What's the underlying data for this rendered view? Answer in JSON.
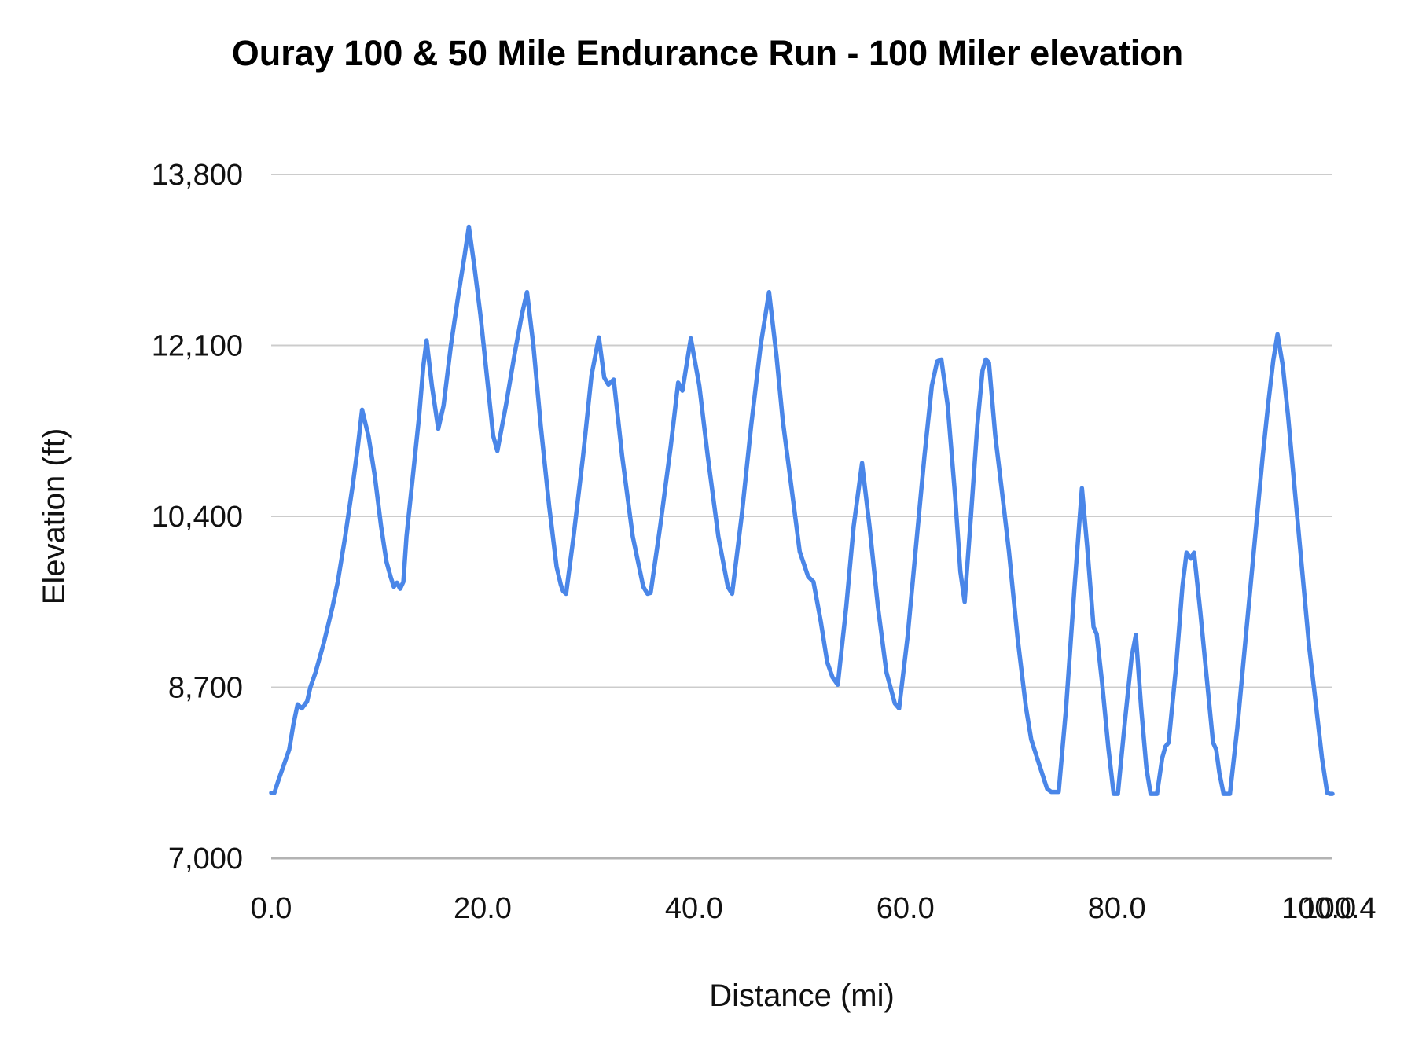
{
  "title": "Ouray 100 & 50 Mile Endurance Run - 100 Miler elevation",
  "colors": {
    "line": "#4a86e8",
    "gridline": "#cccccc",
    "baseline": "#b3b3b3",
    "text": "#111111",
    "background": "#ffffff"
  },
  "chart_data": {
    "type": "line",
    "title": "Ouray 100 & 50 Mile Endurance Run - 100 Miler elevation",
    "xlabel": "Distance (mi)",
    "ylabel": "Elevation (ft)",
    "xlim": [
      0,
      100.4
    ],
    "ylim": [
      7000,
      13800
    ],
    "grid": "horizontal-only",
    "legend": "none",
    "x_ticks": [
      {
        "value": 0.0,
        "label": "0.0"
      },
      {
        "value": 20.0,
        "label": "20.0"
      },
      {
        "value": 40.0,
        "label": "40.0"
      },
      {
        "value": 60.0,
        "label": "60.0"
      },
      {
        "value": 80.0,
        "label": "80.0"
      },
      {
        "value": 100.0,
        "label": "100.0"
      },
      {
        "value": 100.4,
        "label": "100.4"
      }
    ],
    "y_ticks": [
      {
        "value": 7000,
        "label": "7,000"
      },
      {
        "value": 8700,
        "label": "8,700"
      },
      {
        "value": 10400,
        "label": "10,400"
      },
      {
        "value": 12100,
        "label": "12,100"
      },
      {
        "value": 13800,
        "label": "13,800"
      }
    ],
    "series": [
      {
        "name": "100 Miler elevation",
        "points": [
          [
            0.0,
            7650
          ],
          [
            0.3,
            7650
          ],
          [
            0.7,
            7780
          ],
          [
            1.1,
            7900
          ],
          [
            1.7,
            8080
          ],
          [
            2.1,
            8330
          ],
          [
            2.5,
            8530
          ],
          [
            2.9,
            8490
          ],
          [
            3.4,
            8560
          ],
          [
            3.7,
            8700
          ],
          [
            4.2,
            8850
          ],
          [
            5.0,
            9150
          ],
          [
            5.8,
            9500
          ],
          [
            6.3,
            9750
          ],
          [
            7.0,
            10200
          ],
          [
            7.7,
            10700
          ],
          [
            8.2,
            11100
          ],
          [
            8.6,
            11460
          ],
          [
            9.2,
            11200
          ],
          [
            9.8,
            10800
          ],
          [
            10.4,
            10300
          ],
          [
            10.9,
            9950
          ],
          [
            11.3,
            9800
          ],
          [
            11.6,
            9700
          ],
          [
            11.9,
            9740
          ],
          [
            12.2,
            9680
          ],
          [
            12.5,
            9750
          ],
          [
            12.8,
            10200
          ],
          [
            13.4,
            10800
          ],
          [
            14.0,
            11400
          ],
          [
            14.4,
            11900
          ],
          [
            14.7,
            12150
          ],
          [
            15.2,
            11700
          ],
          [
            15.8,
            11270
          ],
          [
            16.3,
            11500
          ],
          [
            17.0,
            12100
          ],
          [
            17.7,
            12600
          ],
          [
            18.3,
            13000
          ],
          [
            18.7,
            13280
          ],
          [
            19.2,
            12900
          ],
          [
            19.8,
            12400
          ],
          [
            20.4,
            11800
          ],
          [
            21.0,
            11200
          ],
          [
            21.4,
            11050
          ],
          [
            22.2,
            11500
          ],
          [
            23.0,
            12000
          ],
          [
            23.7,
            12400
          ],
          [
            24.2,
            12630
          ],
          [
            24.8,
            12100
          ],
          [
            25.5,
            11300
          ],
          [
            26.3,
            10500
          ],
          [
            27.0,
            9900
          ],
          [
            27.4,
            9720
          ],
          [
            27.6,
            9660
          ],
          [
            27.9,
            9630
          ],
          [
            28.6,
            10200
          ],
          [
            29.5,
            11000
          ],
          [
            30.3,
            11800
          ],
          [
            31.0,
            12180
          ],
          [
            31.5,
            11780
          ],
          [
            31.9,
            11710
          ],
          [
            32.4,
            11760
          ],
          [
            33.2,
            11000
          ],
          [
            34.2,
            10200
          ],
          [
            35.2,
            9700
          ],
          [
            35.6,
            9630
          ],
          [
            35.9,
            9640
          ],
          [
            36.8,
            10300
          ],
          [
            37.8,
            11100
          ],
          [
            38.5,
            11730
          ],
          [
            38.9,
            11650
          ],
          [
            39.7,
            12170
          ],
          [
            40.5,
            11700
          ],
          [
            41.3,
            11000
          ],
          [
            42.3,
            10200
          ],
          [
            43.2,
            9700
          ],
          [
            43.6,
            9630
          ],
          [
            44.5,
            10400
          ],
          [
            45.4,
            11300
          ],
          [
            46.3,
            12100
          ],
          [
            47.1,
            12630
          ],
          [
            47.8,
            12000
          ],
          [
            48.4,
            11350
          ],
          [
            49.2,
            10700
          ],
          [
            50.0,
            10050
          ],
          [
            50.8,
            9800
          ],
          [
            51.3,
            9750
          ],
          [
            52.0,
            9350
          ],
          [
            52.6,
            8950
          ],
          [
            53.1,
            8800
          ],
          [
            53.6,
            8725
          ],
          [
            54.4,
            9500
          ],
          [
            55.1,
            10300
          ],
          [
            55.9,
            10930
          ],
          [
            56.6,
            10300
          ],
          [
            57.4,
            9500
          ],
          [
            58.2,
            8850
          ],
          [
            59.0,
            8540
          ],
          [
            59.4,
            8490
          ],
          [
            60.2,
            9200
          ],
          [
            61.0,
            10100
          ],
          [
            61.8,
            11000
          ],
          [
            62.5,
            11700
          ],
          [
            63.0,
            11940
          ],
          [
            63.4,
            11960
          ],
          [
            64.0,
            11500
          ],
          [
            64.7,
            10600
          ],
          [
            65.2,
            9850
          ],
          [
            65.6,
            9550
          ],
          [
            66.2,
            10400
          ],
          [
            66.8,
            11300
          ],
          [
            67.3,
            11850
          ],
          [
            67.6,
            11960
          ],
          [
            67.9,
            11930
          ],
          [
            68.5,
            11200
          ],
          [
            69.1,
            10680
          ],
          [
            69.8,
            10050
          ],
          [
            70.6,
            9200
          ],
          [
            71.4,
            8500
          ],
          [
            71.9,
            8180
          ],
          [
            72.6,
            7950
          ],
          [
            73.4,
            7690
          ],
          [
            73.8,
            7660
          ],
          [
            74.5,
            7660
          ],
          [
            75.2,
            8500
          ],
          [
            76.0,
            9700
          ],
          [
            76.7,
            10680
          ],
          [
            77.2,
            10100
          ],
          [
            77.8,
            9300
          ],
          [
            78.1,
            9230
          ],
          [
            78.6,
            8750
          ],
          [
            79.2,
            8100
          ],
          [
            79.7,
            7640
          ],
          [
            80.1,
            7640
          ],
          [
            80.8,
            8400
          ],
          [
            81.4,
            9000
          ],
          [
            81.8,
            9220
          ],
          [
            82.3,
            8500
          ],
          [
            82.8,
            7900
          ],
          [
            83.2,
            7640
          ],
          [
            83.8,
            7640
          ],
          [
            84.3,
            8000
          ],
          [
            84.6,
            8110
          ],
          [
            84.9,
            8150
          ],
          [
            85.6,
            8900
          ],
          [
            86.2,
            9700
          ],
          [
            86.6,
            10040
          ],
          [
            87.0,
            9980
          ],
          [
            87.3,
            10040
          ],
          [
            87.9,
            9450
          ],
          [
            88.5,
            8800
          ],
          [
            89.1,
            8150
          ],
          [
            89.4,
            8080
          ],
          [
            89.7,
            7850
          ],
          [
            90.1,
            7640
          ],
          [
            90.7,
            7640
          ],
          [
            91.4,
            8300
          ],
          [
            92.2,
            9200
          ],
          [
            93.0,
            10100
          ],
          [
            93.8,
            11000
          ],
          [
            94.3,
            11500
          ],
          [
            94.8,
            11950
          ],
          [
            95.2,
            12210
          ],
          [
            95.7,
            11900
          ],
          [
            96.2,
            11400
          ],
          [
            96.8,
            10700
          ],
          [
            97.5,
            9900
          ],
          [
            98.2,
            9100
          ],
          [
            98.8,
            8560
          ],
          [
            99.4,
            8000
          ],
          [
            99.9,
            7650
          ],
          [
            100.15,
            7640
          ],
          [
            100.4,
            7640
          ]
        ]
      }
    ]
  }
}
